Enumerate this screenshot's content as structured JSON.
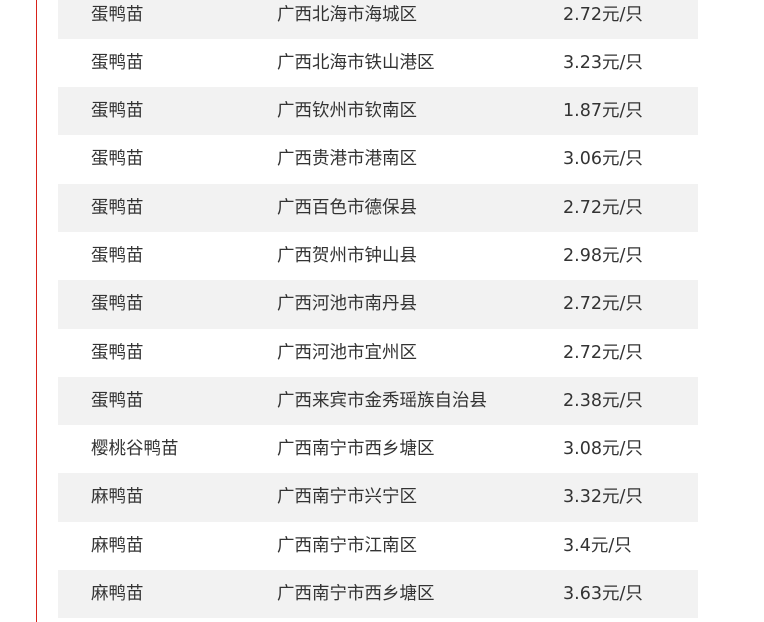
{
  "rows": [
    {
      "type": "蛋鸭苗",
      "region": "广西北海市海城区",
      "price": "2.72元/只"
    },
    {
      "type": "蛋鸭苗",
      "region": "广西北海市铁山港区",
      "price": "3.23元/只"
    },
    {
      "type": "蛋鸭苗",
      "region": "广西钦州市钦南区",
      "price": "1.87元/只"
    },
    {
      "type": "蛋鸭苗",
      "region": "广西贵港市港南区",
      "price": "3.06元/只"
    },
    {
      "type": "蛋鸭苗",
      "region": "广西百色市德保县",
      "price": "2.72元/只"
    },
    {
      "type": "蛋鸭苗",
      "region": "广西贺州市钟山县",
      "price": "2.98元/只"
    },
    {
      "type": "蛋鸭苗",
      "region": "广西河池市南丹县",
      "price": "2.72元/只"
    },
    {
      "type": "蛋鸭苗",
      "region": "广西河池市宜州区",
      "price": "2.72元/只"
    },
    {
      "type": "蛋鸭苗",
      "region": "广西来宾市金秀瑶族自治县",
      "price": "2.38元/只"
    },
    {
      "type": "樱桃谷鸭苗",
      "region": "广西南宁市西乡塘区",
      "price": "3.08元/只"
    },
    {
      "type": "麻鸭苗",
      "region": "广西南宁市兴宁区",
      "price": "3.32元/只"
    },
    {
      "type": "麻鸭苗",
      "region": "广西南宁市江南区",
      "price": "3.4元/只"
    },
    {
      "type": "麻鸭苗",
      "region": "广西南宁市西乡塘区",
      "price": "3.63元/只"
    }
  ],
  "colors": {
    "accent_line": "#d8221a",
    "stripe": "#f2f2f2",
    "text": "#333333"
  }
}
